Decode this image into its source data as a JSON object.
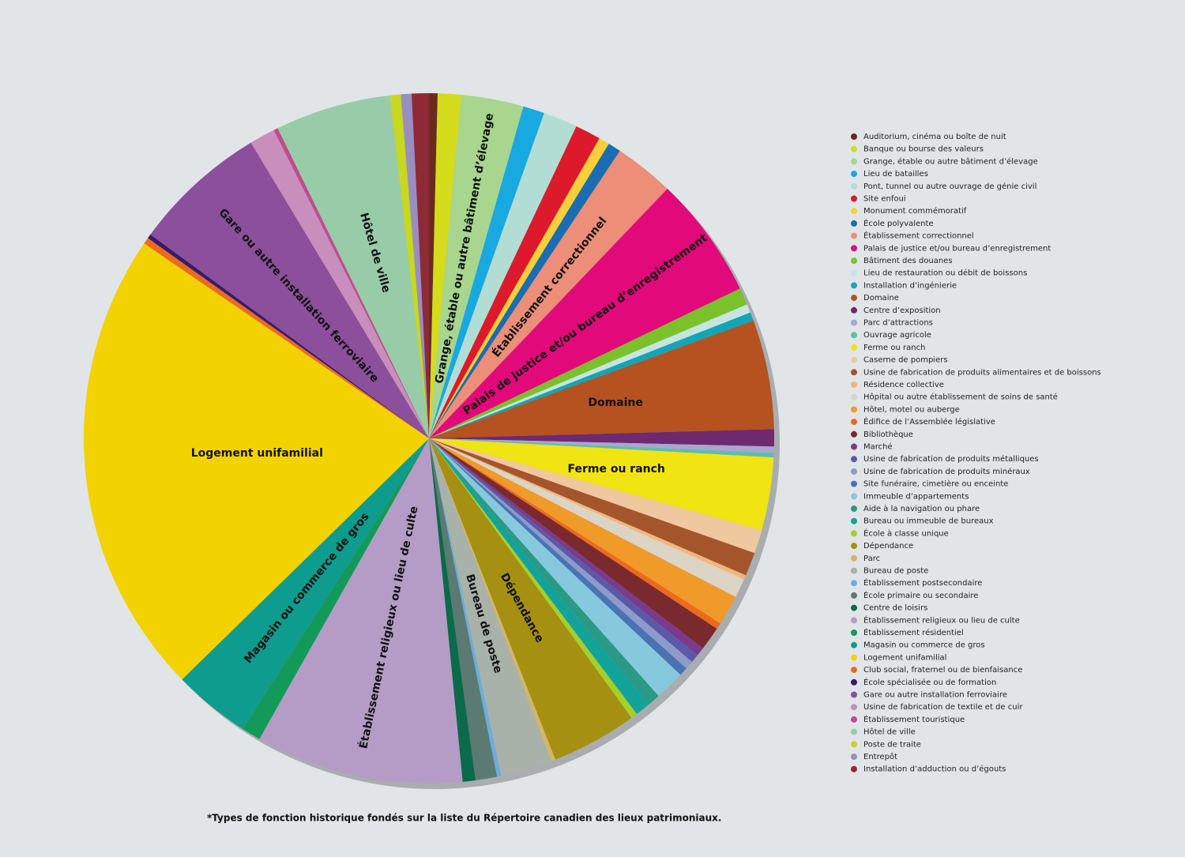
{
  "chart_data": {
    "type": "pie",
    "categories": [
      "Auditorium, cinéma ou boîte de nuit",
      "Banque ou bourse des valeurs",
      "Grange, étable ou autre bâtiment d’élevage",
      "Lieu de batailles",
      "Pont, tunnel ou autre ouvrage de génie civil",
      "Site enfoui",
      "Monument commémoratif",
      "École polyvalente",
      "Établissement correctionnel",
      "Palais de justice et/ou bureau d’enregistrement",
      "Bâtiment des douanes",
      "Lieu de restauration ou débit de boissons",
      "Installation d’ingénierie",
      "Domaine",
      "Centre d’exposition",
      "Parc d’attractions",
      "Ouvrage agricole",
      "Ferme ou ranch",
      "Caserne de pompiers",
      "Usine de fabrication de produits alimentaires et de boissons",
      "Résidence collective",
      "Hôpital ou autre établissement de soins de santé",
      "Hôtel, motel ou auberge",
      "Édifice de l’Assemblée législative",
      "Bibliothèque",
      "Marché",
      "Usine de fabrication de produits métalliques",
      "Usine de fabrication de produits minéraux",
      "Site funéraire, cimetière ou enceinte",
      "Immeuble d’appartements",
      "Aide à la navigation ou phare",
      "Bureau ou immeuble de bureaux",
      "École à classe unique",
      "Dépendance",
      "Parc",
      "Bureau de poste",
      "Établissement postsecondaire",
      "École primaire ou secondaire",
      "Centre de loisirs",
      "Établissement religieux ou lieu de culte",
      "Établissement résidentiel",
      "Magasin ou commerce de gros",
      "Logement unifamilial",
      "Club social, fraternel ou de bienfaisance",
      "École spécialisée ou de formation",
      "Gare ou autre installation ferroviaire",
      "Usine de fabrication de textile et de cuir",
      "Établissement touristique",
      "Hôtel de ville",
      "Poste de traite",
      "Entrepôt",
      "Installation d’adduction ou d’égouts"
    ],
    "values": [
      0.4,
      1.1,
      2.9,
      1.0,
      1.6,
      1.2,
      0.5,
      0.6,
      2.8,
      5.7,
      0.8,
      0.4,
      0.4,
      5.1,
      0.8,
      0.3,
      0.2,
      3.4,
      1.1,
      1.1,
      0.2,
      0.9,
      1.4,
      0.3,
      1.1,
      0.4,
      0.4,
      0.4,
      0.4,
      1.4,
      0.6,
      0.7,
      0.3,
      4.0,
      0.2,
      2.4,
      0.2,
      1.0,
      0.6,
      9.7,
      0.9,
      3.6,
      21.8,
      0.3,
      0.2,
      6.3,
      1.2,
      0.2,
      5.4,
      0.5,
      0.5,
      0.8
    ],
    "colors": [
      "#6b2a1e",
      "#d4dc1c",
      "#a8d68e",
      "#19a9e1",
      "#b2ddd4",
      "#dd1a2b",
      "#f6cf3a",
      "#1a6db3",
      "#ec8e78",
      "#e2097a",
      "#7bc12a",
      "#c6e5e1",
      "#13a5b7",
      "#b6521f",
      "#6e2a6e",
      "#a9a6cf",
      "#5cbfa8",
      "#f0e413",
      "#f0c8a0",
      "#a5552b",
      "#f2b67c",
      "#dcd4c4",
      "#f09a2a",
      "#ec6a1e",
      "#7a2a2e",
      "#7a3a8e",
      "#5a5aa8",
      "#8e9ac8",
      "#4a72b6",
      "#86c9dc",
      "#2a9a86",
      "#12a49a",
      "#a6cf2a",
      "#a59011",
      "#d4b66a",
      "#a8b2a8",
      "#6aaedc",
      "#5a7a72",
      "#0a6a4a",
      "#b49cc6",
      "#139a5a",
      "#0e9c8e",
      "#f2d200",
      "#ec6a1e",
      "#3a1a6a",
      "#8c4f9c",
      "#c88ebc",
      "#c04a8e",
      "#98cca8",
      "#c8d81e",
      "#9a8ec0",
      "#8e2a36"
    ],
    "footnote": "*Types de fonction historique fondés sur la liste du Répertoire canadien des lieux patrimoniaux."
  }
}
